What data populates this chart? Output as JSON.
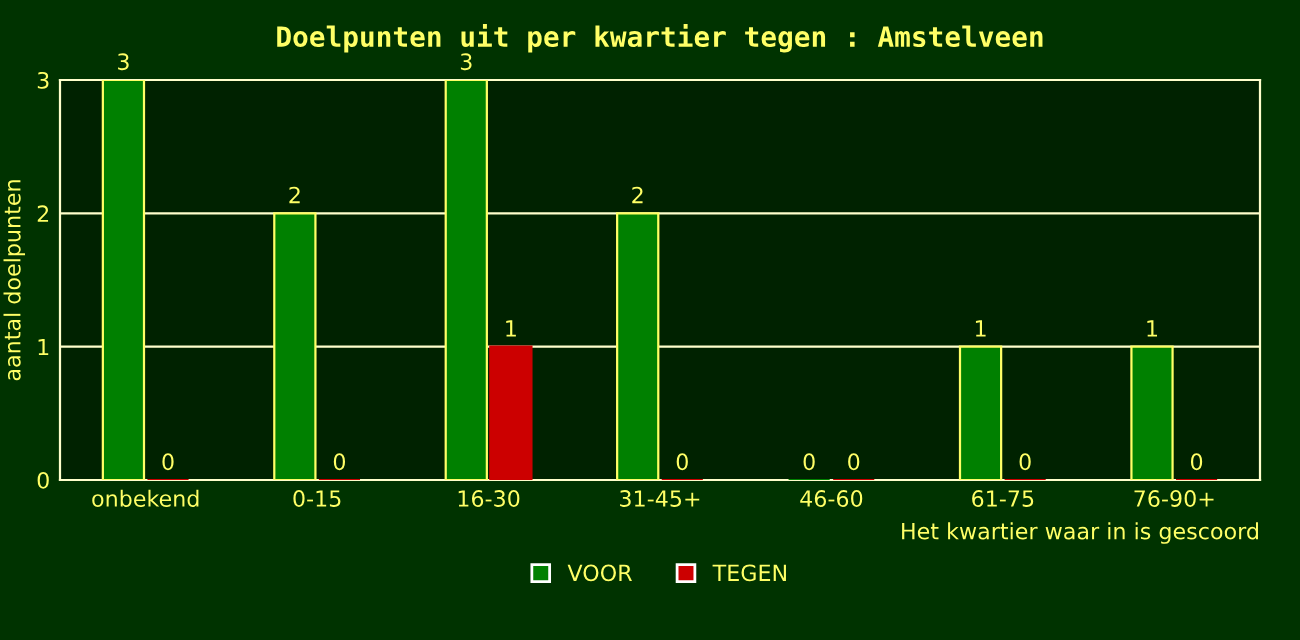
{
  "chart_data": {
    "type": "bar",
    "title": "Doelpunten uit per kwartier tegen : Amstelveen",
    "xlabel": "Het kwartier waar in is gescoord",
    "ylabel": "aantal doelpunten",
    "categories": [
      "onbekend",
      "0-15",
      "16-30",
      "31-45+",
      "46-60",
      "61-75",
      "76-90+"
    ],
    "series": [
      {
        "name": "VOOR",
        "color": "#008000",
        "values": [
          3,
          2,
          3,
          2,
          0,
          1,
          1
        ]
      },
      {
        "name": "TEGEN",
        "color": "#cc0000",
        "values": [
          0,
          0,
          1,
          0,
          0,
          0,
          0
        ]
      }
    ],
    "ylim": [
      0,
      3
    ],
    "yticks": [
      0,
      1,
      2,
      3
    ],
    "grid": "y",
    "legend": "bottom",
    "data_labels": true
  }
}
